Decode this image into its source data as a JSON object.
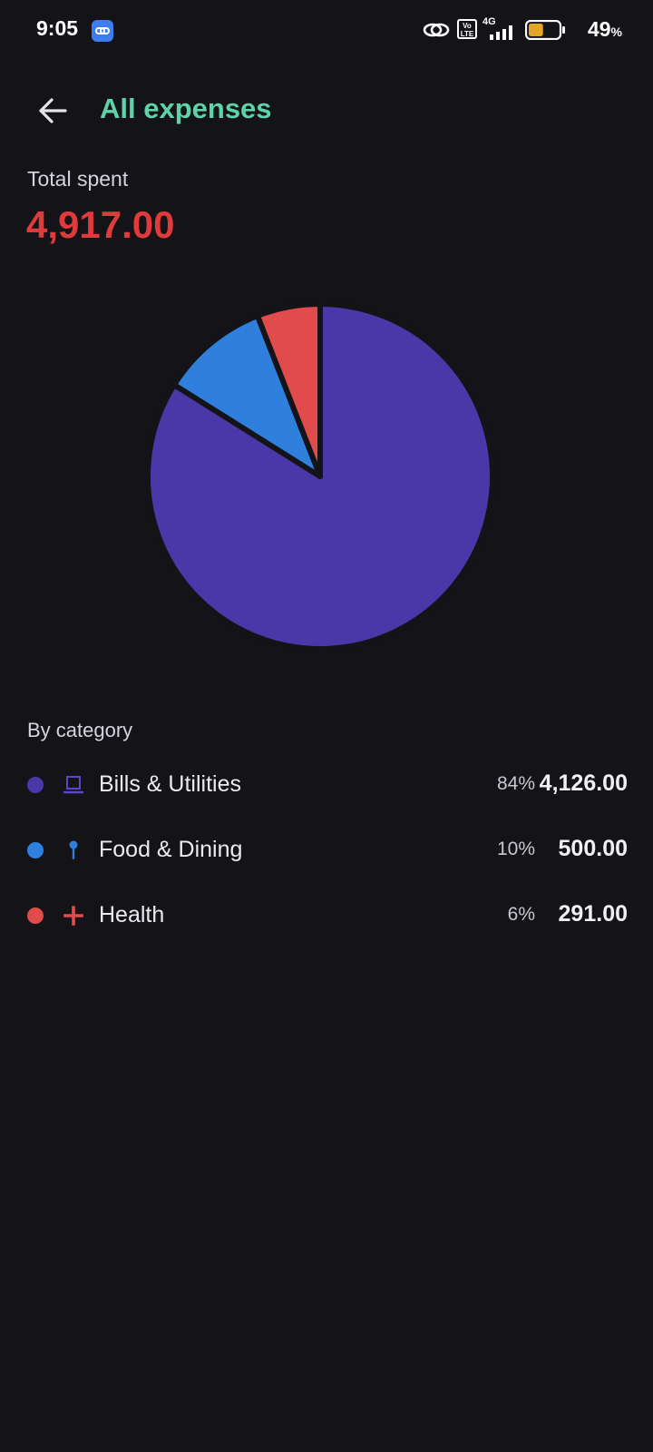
{
  "status_bar": {
    "time": "9:05",
    "battery_value": "49",
    "battery_unit": "%",
    "battery_level": 0.49,
    "network_label": "4G",
    "volte_label": "Vo LTE"
  },
  "header": {
    "title": "All expenses"
  },
  "summary": {
    "total_label": "Total spent",
    "total_value": "4,917.00"
  },
  "chart_data": {
    "type": "pie",
    "categories": [
      "Bills & Utilities",
      "Food & Dining",
      "Health"
    ],
    "values": [
      4126.0,
      500.0,
      291.0
    ],
    "colors": [
      "#4a38a8",
      "#2f7fdc",
      "#e14b4b"
    ]
  },
  "categories_section": {
    "label": "By category",
    "items": [
      {
        "name": "Bills & Utilities",
        "percent": "84%",
        "amount": "4,126.00",
        "color": "#4a38a8",
        "icon": "laptop-icon"
      },
      {
        "name": "Food & Dining",
        "percent": "10%",
        "amount": "500.00",
        "color": "#2f7fdc",
        "icon": "pin-icon"
      },
      {
        "name": "Health",
        "percent": "6%",
        "amount": "291.00",
        "color": "#e14b4b",
        "icon": "plus-icon"
      }
    ]
  }
}
